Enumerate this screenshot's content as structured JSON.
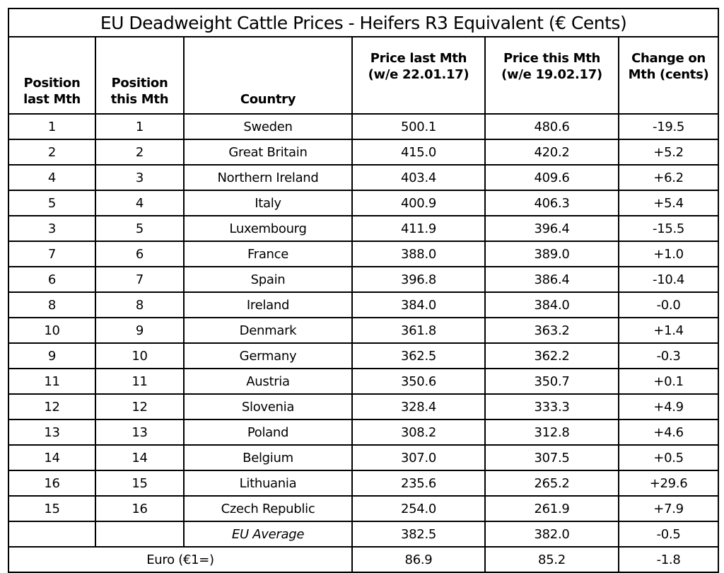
{
  "title": "EU Deadweight Cattle Prices - Heifers R3 Equivalent (€ Cents)",
  "headers": {
    "pos_last_line1": "Position",
    "pos_last_line2": "last Mth",
    "pos_this_line1": "Position",
    "pos_this_line2": "this Mth",
    "country": "Country",
    "price_last_line1": "Price last Mth",
    "price_last_line2": "(w/e 22.01.17)",
    "price_this_line1": "Price this Mth",
    "price_this_line2": "(w/e 19.02.17)",
    "change_line1": "Change on",
    "change_line2": "Mth (cents)"
  },
  "rows": [
    {
      "pos_last": "1",
      "pos_this": "1",
      "country": "Sweden",
      "price_last": "500.1",
      "price_this": "480.6",
      "change": "-19.5"
    },
    {
      "pos_last": "2",
      "pos_this": "2",
      "country": "Great Britain",
      "price_last": "415.0",
      "price_this": "420.2",
      "change": "+5.2"
    },
    {
      "pos_last": "4",
      "pos_this": "3",
      "country": "Northern Ireland",
      "price_last": "403.4",
      "price_this": "409.6",
      "change": "+6.2"
    },
    {
      "pos_last": "5",
      "pos_this": "4",
      "country": "Italy",
      "price_last": "400.9",
      "price_this": "406.3",
      "change": "+5.4"
    },
    {
      "pos_last": "3",
      "pos_this": "5",
      "country": "Luxembourg",
      "price_last": "411.9",
      "price_this": "396.4",
      "change": "-15.5"
    },
    {
      "pos_last": "7",
      "pos_this": "6",
      "country": "France",
      "price_last": "388.0",
      "price_this": "389.0",
      "change": "+1.0"
    },
    {
      "pos_last": "6",
      "pos_this": "7",
      "country": "Spain",
      "price_last": "396.8",
      "price_this": "386.4",
      "change": "-10.4"
    },
    {
      "pos_last": "8",
      "pos_this": "8",
      "country": "Ireland",
      "price_last": "384.0",
      "price_this": "384.0",
      "change": "-0.0"
    },
    {
      "pos_last": "10",
      "pos_this": "9",
      "country": "Denmark",
      "price_last": "361.8",
      "price_this": "363.2",
      "change": "+1.4"
    },
    {
      "pos_last": "9",
      "pos_this": "10",
      "country": "Germany",
      "price_last": "362.5",
      "price_this": "362.2",
      "change": "-0.3"
    },
    {
      "pos_last": "11",
      "pos_this": "11",
      "country": "Austria",
      "price_last": "350.6",
      "price_this": "350.7",
      "change": "+0.1"
    },
    {
      "pos_last": "12",
      "pos_this": "12",
      "country": "Slovenia",
      "price_last": "328.4",
      "price_this": "333.3",
      "change": "+4.9"
    },
    {
      "pos_last": "13",
      "pos_this": "13",
      "country": "Poland",
      "price_last": "308.2",
      "price_this": "312.8",
      "change": "+4.6"
    },
    {
      "pos_last": "14",
      "pos_this": "14",
      "country": "Belgium",
      "price_last": "307.0",
      "price_this": "307.5",
      "change": "+0.5"
    },
    {
      "pos_last": "16",
      "pos_this": "15",
      "country": "Lithuania",
      "price_last": "235.6",
      "price_this": "265.2",
      "change": "+29.6"
    },
    {
      "pos_last": "15",
      "pos_this": "16",
      "country": "Czech Republic",
      "price_last": "254.0",
      "price_this": "261.9",
      "change": "+7.9"
    }
  ],
  "average": {
    "label": "EU Average",
    "price_last": "382.5",
    "price_this": "382.0",
    "change": "-0.5"
  },
  "euro": {
    "label": "Euro (€1=)",
    "price_last": "86.9",
    "price_this": "85.2",
    "change": "-1.8"
  }
}
